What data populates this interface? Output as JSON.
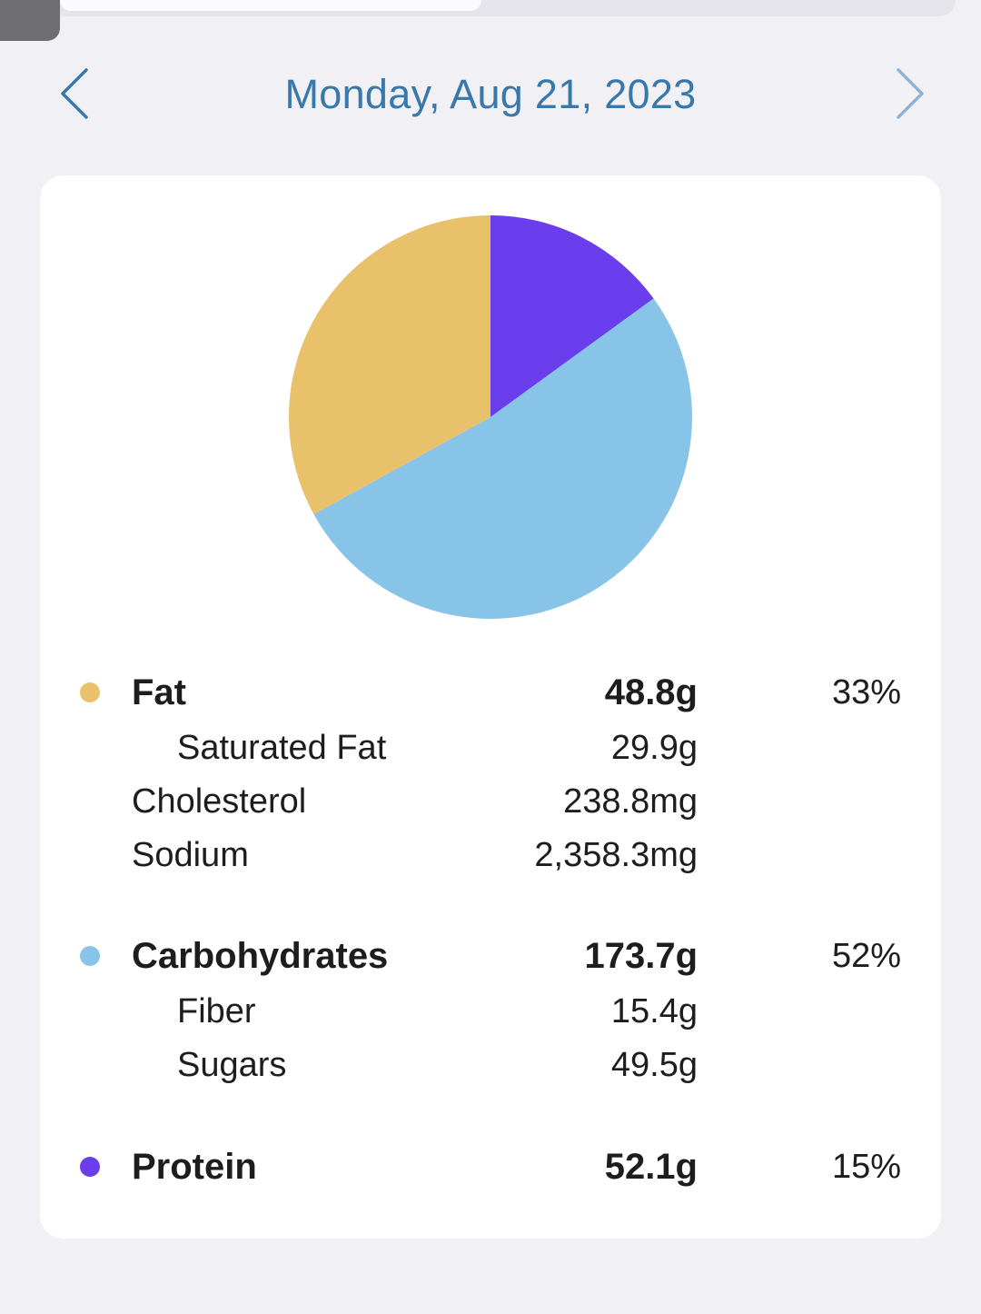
{
  "header": {
    "date_title": "Monday, Aug 21, 2023",
    "prev_icon": "chevron-left-icon",
    "next_icon": "chevron-right-icon",
    "accent_color": "#3978aa"
  },
  "chart_data": {
    "type": "pie",
    "slices": [
      {
        "label": "Protein",
        "value": 15,
        "color": "#6a3ded"
      },
      {
        "label": "Carbohydrates",
        "value": 52,
        "color": "#87c4e7"
      },
      {
        "label": "Fat",
        "value": 33,
        "color": "#e9c16a"
      }
    ]
  },
  "nutrients": {
    "fat": {
      "label": "Fat",
      "amount": "48.8g",
      "percent": "33%",
      "color": "#e9c16a"
    },
    "saturated_fat": {
      "label": "Saturated Fat",
      "amount": "29.9g"
    },
    "cholesterol": {
      "label": "Cholesterol",
      "amount": "238.8mg"
    },
    "sodium": {
      "label": "Sodium",
      "amount": "2,358.3mg"
    },
    "carbohydrates": {
      "label": "Carbohydrates",
      "amount": "173.7g",
      "percent": "52%",
      "color": "#87c4e7"
    },
    "fiber": {
      "label": "Fiber",
      "amount": "15.4g"
    },
    "sugars": {
      "label": "Sugars",
      "amount": "49.5g"
    },
    "protein": {
      "label": "Protein",
      "amount": "52.1g",
      "percent": "15%",
      "color": "#6a3ded"
    }
  }
}
